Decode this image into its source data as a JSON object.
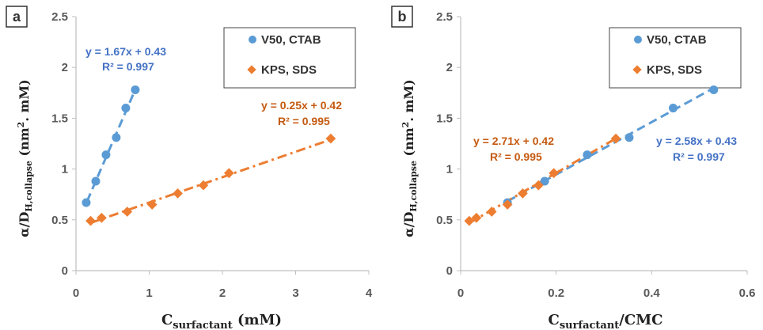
{
  "chart_data": [
    {
      "type": "scatter",
      "panel_label": "a",
      "xlabel_main": "C",
      "xlabel_sub": "surfactant",
      "xlabel_tail": " (mM)",
      "ylabel_main": "α/D",
      "ylabel_sub": "H,collapse",
      "ylabel_tail": " (nm",
      "ylabel_sup": "2",
      "ylabel_end": ". mM)",
      "xlim": [
        0,
        4
      ],
      "ylim": [
        0,
        2.5
      ],
      "xticks": [
        "0",
        "1",
        "2",
        "3",
        "4"
      ],
      "yticks": [
        "0",
        "0.5",
        "1",
        "1.5",
        "2",
        "2.5"
      ],
      "legend": [
        "V50, CTAB",
        "KPS, SDS"
      ],
      "series": [
        {
          "name": "V50, CTAB",
          "color": "#5b9bd5",
          "marker": "circle",
          "x": [
            0.14,
            0.27,
            0.41,
            0.55,
            0.68,
            0.81
          ],
          "y": [
            0.67,
            0.88,
            1.14,
            1.31,
            1.6,
            1.78
          ],
          "fit": {
            "slope": 1.67,
            "intercept": 0.43,
            "x_range": [
              0.15,
              0.83
            ],
            "style": "dashed"
          },
          "equation": "y = 1.67x + 0.43",
          "r2": "R² = 0.997"
        },
        {
          "name": "KPS, SDS",
          "color": "#ed7d31",
          "marker": "diamond",
          "x": [
            0.2,
            0.35,
            0.7,
            1.04,
            1.39,
            1.74,
            2.09,
            3.48
          ],
          "y": [
            0.49,
            0.52,
            0.58,
            0.65,
            0.76,
            0.84,
            0.96,
            1.3
          ],
          "fit": {
            "slope": 0.25,
            "intercept": 0.42,
            "x_range": [
              0.2,
              3.5
            ],
            "style": "dashdot"
          },
          "equation": "y = 0.25x + 0.42",
          "r2": "R² = 0.995"
        }
      ]
    },
    {
      "type": "scatter",
      "panel_label": "b",
      "xlabel_main": "C",
      "xlabel_sub": "surfactant",
      "xlabel_tail": "/CMC",
      "ylabel_main": "α/D",
      "ylabel_sub": "H,collapse",
      "ylabel_tail": " (nm",
      "ylabel_sup": "2",
      "ylabel_end": ". mM)",
      "xlim": [
        0,
        0.6
      ],
      "ylim": [
        0,
        2.5
      ],
      "xticks": [
        "0",
        "0.2",
        "0.4",
        "0.6"
      ],
      "yticks": [
        "0",
        "0.5",
        "1",
        "1.5",
        "2",
        "2.5"
      ],
      "legend": [
        "V50, CTAB",
        "KPS, SDS"
      ],
      "series": [
        {
          "name": "V50, CTAB",
          "color": "#5b9bd5",
          "marker": "circle",
          "x": [
            0.098,
            0.176,
            0.265,
            0.353,
            0.445,
            0.53
          ],
          "y": [
            0.67,
            0.88,
            1.14,
            1.31,
            1.6,
            1.78
          ],
          "fit": {
            "slope": 2.58,
            "intercept": 0.43,
            "x_range": [
              0.098,
              0.53
            ],
            "style": "dashed"
          },
          "equation": "y = 2.58x + 0.43",
          "r2": "R² = 0.997"
        },
        {
          "name": "KPS, SDS",
          "color": "#ed7d31",
          "marker": "diamond",
          "x": [
            0.018,
            0.033,
            0.065,
            0.098,
            0.13,
            0.163,
            0.195,
            0.325
          ],
          "y": [
            0.49,
            0.52,
            0.58,
            0.65,
            0.76,
            0.84,
            0.96,
            1.3
          ],
          "fit": {
            "slope": 2.71,
            "intercept": 0.42,
            "x_range": [
              0.018,
              0.325
            ],
            "style": "dashdot"
          },
          "equation": "y = 2.71x + 0.42",
          "r2": "R² = 0.995"
        }
      ]
    }
  ]
}
